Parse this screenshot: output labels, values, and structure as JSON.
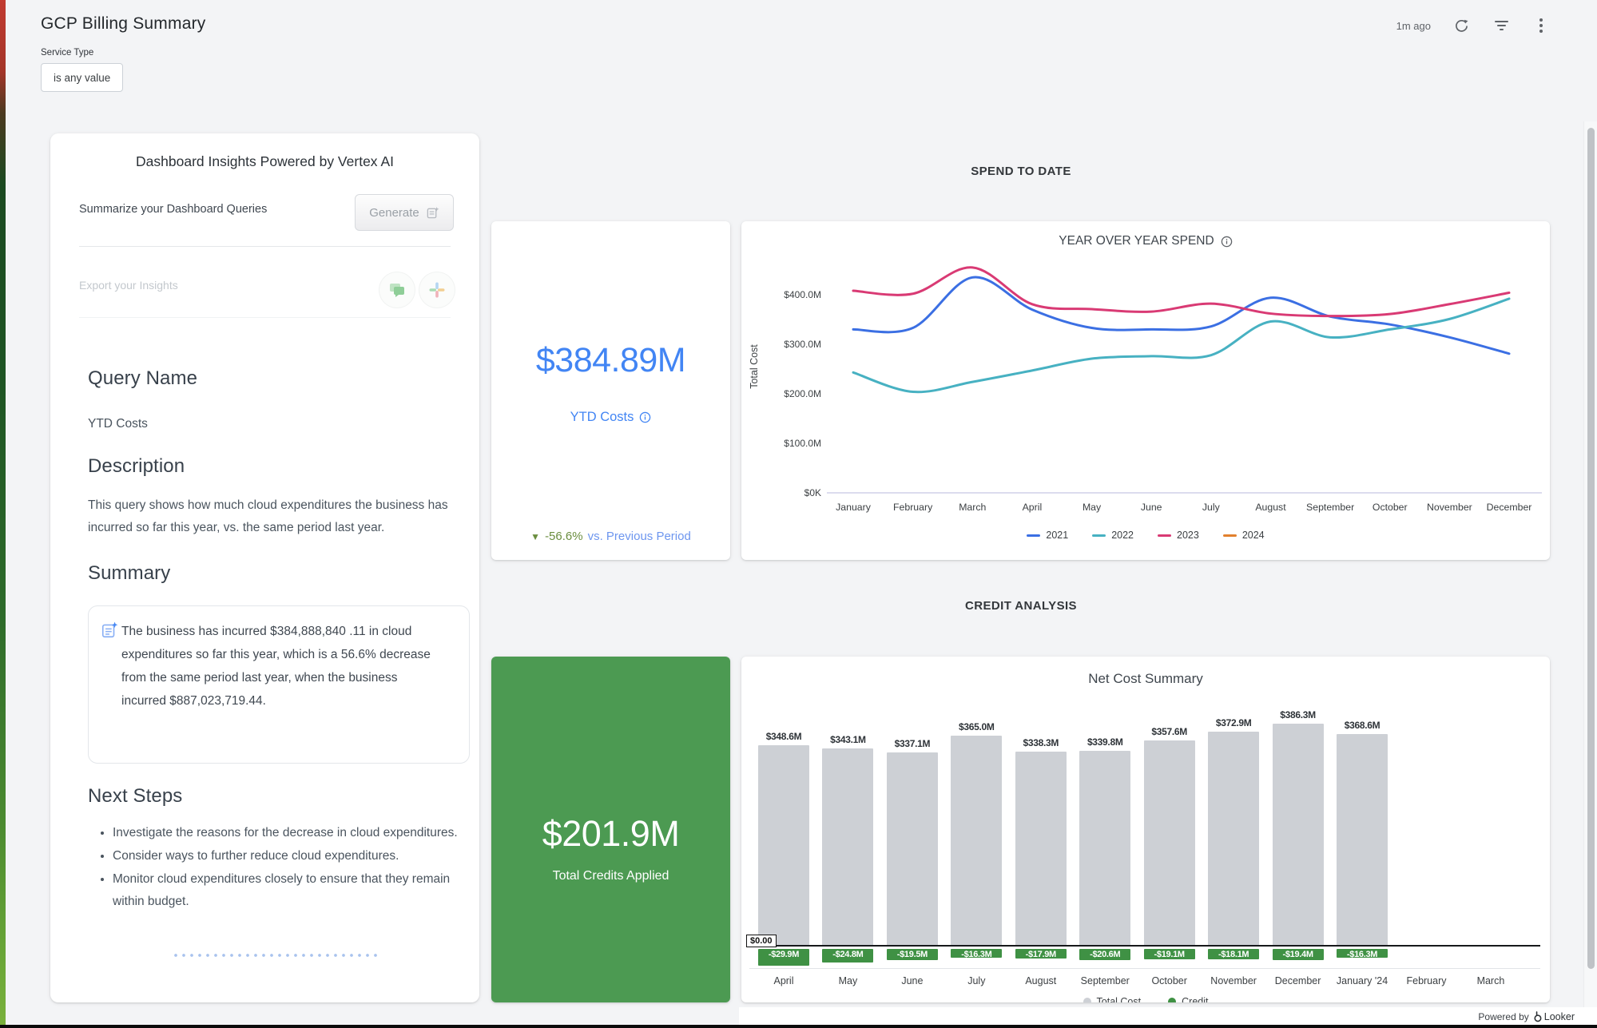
{
  "header": {
    "title": "GCP Billing Summary",
    "updated": "1m ago"
  },
  "filter": {
    "label": "Service Type",
    "value": "is any value"
  },
  "insights_panel": {
    "title": "Dashboard Insights Powered by Vertex AI",
    "summarize_label": "Summarize your Dashboard Queries",
    "generate_label": "Generate",
    "export_label": "Export your Insights",
    "query_name_heading": "Query Name",
    "query_name": "YTD Costs",
    "description_heading": "Description",
    "description": "This query shows how much cloud expenditures the business has incurred so far this year, vs. the same period last year.",
    "summary_heading": "Summary",
    "summary_text": "The business has incurred $384,888,840 .11 in cloud expenditures so far this year, which is a 56.6% decrease from the same period last year, when the business incurred $887,023,719.44.",
    "next_steps_heading": "Next Steps",
    "next_steps": [
      "Investigate the reasons for the decrease in cloud expenditures.",
      "Consider ways to further reduce cloud expenditures.",
      "Monitor cloud expenditures closely to ensure that they remain within budget."
    ]
  },
  "sections": {
    "spend_to_date": "SPEND TO DATE",
    "credit_analysis": "CREDIT ANALYSIS"
  },
  "ytd_tile": {
    "value": "$384.89M",
    "label": "YTD Costs",
    "comparison_arrow": "▼",
    "comparison_value": "-56.6%",
    "comparison_suffix": "vs. Previous Period",
    "value_color": "#4285f4",
    "comparison_color": "#6b8e3f"
  },
  "credits_tile": {
    "value": "$201.9M",
    "label": "Total Credits Applied",
    "background_color": "#4c9a52"
  },
  "chart_data": [
    {
      "type": "line",
      "title": "YEAR OVER YEAR SPEND",
      "ylabel": "Total Cost",
      "x": [
        "January",
        "February",
        "March",
        "April",
        "May",
        "June",
        "July",
        "August",
        "September",
        "October",
        "November",
        "December"
      ],
      "yticks": [
        {
          "label": "$0K",
          "value": 0
        },
        {
          "label": "$100.0M",
          "value": 100
        },
        {
          "label": "$200.0M",
          "value": 200
        },
        {
          "label": "$300.0M",
          "value": 300
        },
        {
          "label": "$400.0M",
          "value": 400
        }
      ],
      "ylim": [
        0,
        470
      ],
      "grid": false,
      "legend_position": "bottom",
      "series": [
        {
          "name": "2021",
          "color": "#3b6fe3",
          "values": [
            330,
            333,
            435,
            370,
            333,
            330,
            336,
            394,
            356,
            340,
            314,
            281
          ]
        },
        {
          "name": "2022",
          "color": "#47b1c2",
          "values": [
            243,
            204,
            224,
            247,
            271,
            276,
            278,
            346,
            314,
            330,
            351,
            392
          ]
        },
        {
          "name": "2023",
          "color": "#d93a74",
          "values": [
            408,
            402,
            455,
            381,
            371,
            366,
            382,
            362,
            357,
            361,
            381,
            404
          ]
        },
        {
          "name": "2024",
          "color": "#e2802d",
          "values": []
        }
      ]
    },
    {
      "type": "bar",
      "title": "Net Cost Summary",
      "categories": [
        "April",
        "May",
        "June",
        "July",
        "August",
        "September",
        "October",
        "November",
        "December",
        "January '24",
        "February",
        "March"
      ],
      "zero_label": "$0.00",
      "legend_position": "bottom",
      "series": [
        {
          "name": "Total Cost",
          "color": "#cdd0d5",
          "values": [
            348.6,
            343.1,
            337.1,
            365.0,
            338.3,
            339.8,
            357.6,
            372.9,
            386.3,
            368.6,
            null,
            null
          ],
          "labels": [
            "$348.6M",
            "$343.1M",
            "$337.1M",
            "$365.0M",
            "$338.3M",
            "$339.8M",
            "$357.6M",
            "$372.9M",
            "$386.3M",
            "$368.6M",
            null,
            null
          ]
        },
        {
          "name": "Credit",
          "color": "#3f9144",
          "values": [
            -29.9,
            -24.8,
            -19.5,
            -16.3,
            -17.9,
            -20.6,
            -19.1,
            -18.1,
            -19.4,
            -16.3,
            null,
            null
          ],
          "labels": [
            "-$29.9M",
            "-$24.8M",
            "-$19.5M",
            "-$16.3M",
            "-$17.9M",
            "-$20.6M",
            "-$19.1M",
            "-$18.1M",
            "-$19.4M",
            "-$16.3M",
            null,
            null
          ]
        }
      ]
    }
  ],
  "footer": {
    "powered_by": "Powered by",
    "brand": "Looker"
  }
}
